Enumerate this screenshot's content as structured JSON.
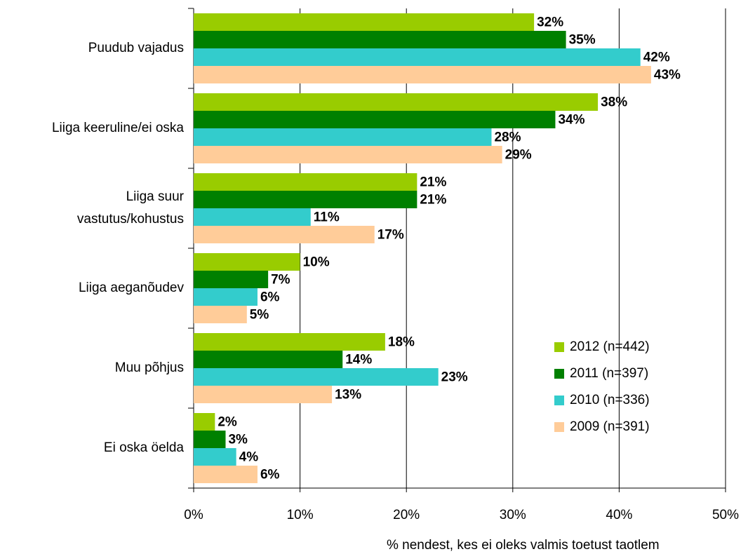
{
  "chart_data": {
    "type": "bar",
    "orientation": "horizontal",
    "categories": [
      "Puudub vajadus",
      "Liiga keeruline/ei oska",
      "Liiga suur vastutus/kohustus",
      "Liiga aeganõudev",
      "Muu põhjus",
      "Ei oska öelda"
    ],
    "series": [
      {
        "name": "2012 (n=442)",
        "color": "#99cc00",
        "values": [
          32,
          38,
          21,
          10,
          18,
          2
        ],
        "value_labels": [
          "32%",
          "38%",
          "21%",
          "10%",
          "18%",
          "2%"
        ]
      },
      {
        "name": "2011 (n=397)",
        "color": "#008000",
        "values": [
          35,
          34,
          21,
          7,
          14,
          3
        ],
        "value_labels": [
          "35%",
          "34%",
          "21%",
          "7%",
          "14%",
          "3%"
        ]
      },
      {
        "name": "2010 (n=336)",
        "color": "#33cccc",
        "values": [
          42,
          28,
          11,
          6,
          23,
          4
        ],
        "value_labels": [
          "42%",
          "28%",
          "11%",
          "6%",
          "23%",
          "4%"
        ]
      },
      {
        "name": "2009 (n=391)",
        "color": "#ffcc99",
        "values": [
          43,
          29,
          17,
          5,
          13,
          6
        ],
        "value_labels": [
          "43%",
          "29%",
          "17%",
          "5%",
          "13%",
          "6%"
        ]
      }
    ],
    "xlabel": "% nendest, kes ei oleks valmis toetust taotlem",
    "xlim": [
      0,
      50
    ],
    "xticks": [
      {
        "value": 0,
        "label": "0%"
      },
      {
        "value": 10,
        "label": "10%"
      },
      {
        "value": 20,
        "label": "20%"
      },
      {
        "value": 30,
        "label": "30%"
      },
      {
        "value": 40,
        "label": "40%"
      },
      {
        "value": 50,
        "label": "50%"
      }
    ],
    "grid": true,
    "legend": "right"
  }
}
